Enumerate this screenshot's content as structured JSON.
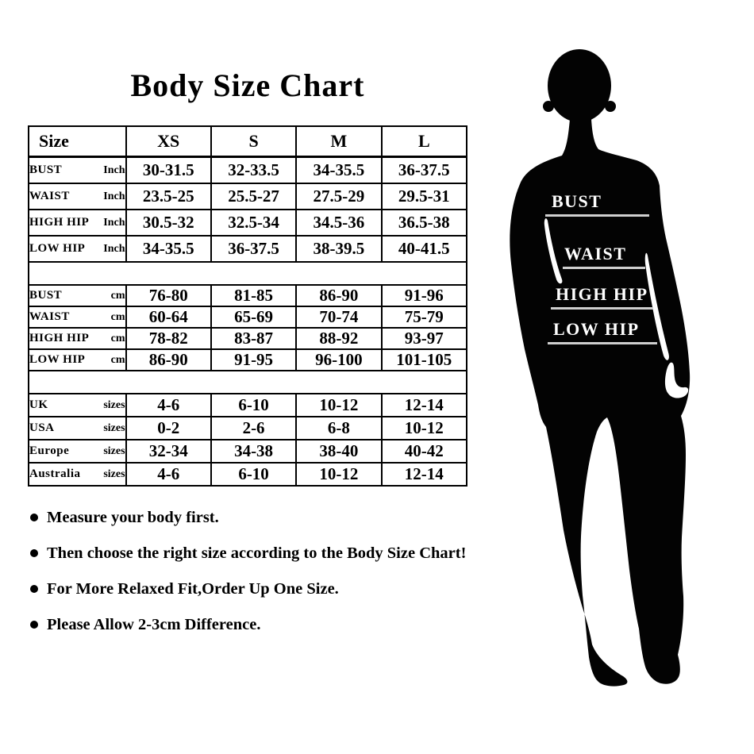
{
  "title": "Body Size Chart",
  "colors": {
    "text": "#000000",
    "table_border": "#000000",
    "silhouette": "#030303",
    "figure_label": "#ffffff",
    "figure_underline": "#cfcfcf"
  },
  "table": {
    "header": [
      "Size",
      "XS",
      "S",
      "M",
      "L"
    ],
    "sections": [
      {
        "unit": "Inch",
        "rows": [
          {
            "label": "BUST",
            "unit": "Inch",
            "values": [
              "30-31.5",
              "32-33.5",
              "34-35.5",
              "36-37.5"
            ]
          },
          {
            "label": "WAIST",
            "unit": "Inch",
            "values": [
              "23.5-25",
              "25.5-27",
              "27.5-29",
              "29.5-31"
            ]
          },
          {
            "label": "HIGH HIP",
            "unit": "Inch",
            "values": [
              "30.5-32",
              "32.5-34",
              "34.5-36",
              "36.5-38"
            ]
          },
          {
            "label": "LOW HIP",
            "unit": "Inch",
            "values": [
              "34-35.5",
              "36-37.5",
              "38-39.5",
              "40-41.5"
            ]
          }
        ]
      },
      {
        "unit": "cm",
        "rows": [
          {
            "label": "BUST",
            "unit": "cm",
            "values": [
              "76-80",
              "81-85",
              "86-90",
              "91-96"
            ]
          },
          {
            "label": "WAIST",
            "unit": "cm",
            "values": [
              "60-64",
              "65-69",
              "70-74",
              "75-79"
            ]
          },
          {
            "label": "HIGH HIP",
            "unit": "cm",
            "values": [
              "78-82",
              "83-87",
              "88-92",
              "93-97"
            ]
          },
          {
            "label": "LOW HIP",
            "unit": "cm",
            "values": [
              "86-90",
              "91-95",
              "96-100",
              "101-105"
            ]
          }
        ]
      },
      {
        "unit": "sizes",
        "rows": [
          {
            "label": "UK",
            "unit": "sizes",
            "values": [
              "4-6",
              "6-10",
              "10-12",
              "12-14"
            ]
          },
          {
            "label": "USA",
            "unit": "sizes",
            "values": [
              "0-2",
              "2-6",
              "6-8",
              "10-12"
            ]
          },
          {
            "label": "Europe",
            "unit": "sizes",
            "values": [
              "32-34",
              "34-38",
              "38-40",
              "40-42"
            ]
          },
          {
            "label": "Australia",
            "unit": "sizes",
            "values": [
              "4-6",
              "6-10",
              "10-12",
              "12-14"
            ]
          }
        ]
      }
    ]
  },
  "notes": [
    "Measure your body first.",
    "Then choose the right size according to the Body Size Chart!",
    "For More Relaxed Fit,Order Up One Size.",
    "Please Allow 2-3cm Difference."
  ],
  "figure": {
    "labels": [
      "BUST",
      "WAIST",
      "HIGH HIP",
      "LOW HIP"
    ]
  }
}
